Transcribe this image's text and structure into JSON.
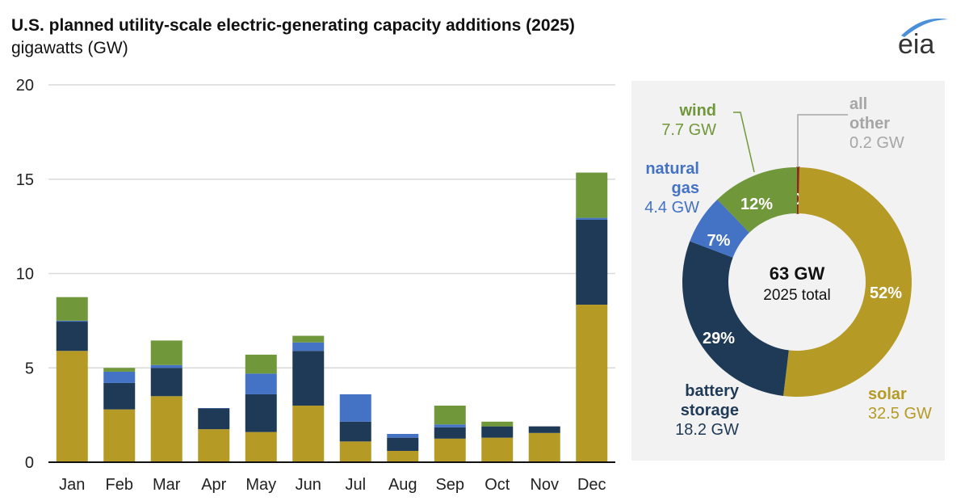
{
  "title": "U.S. planned utility-scale electric-generating capacity additions (2025)",
  "subtitle": "gigawatts (GW)",
  "logo_text": "eia",
  "colors": {
    "solar": "#b59a26",
    "battery storage": "#1f3a56",
    "natural gas": "#4472c4",
    "wind": "#70973a",
    "all other": "#8b2a1d",
    "panel": "#f2f2f2"
  },
  "chart_data": [
    {
      "type": "bar",
      "stacked": true,
      "categories": [
        "Jan",
        "Feb",
        "Mar",
        "Apr",
        "May",
        "Jun",
        "Jul",
        "Aug",
        "Sep",
        "Oct",
        "Nov",
        "Dec"
      ],
      "series": [
        {
          "key": "solar",
          "values": [
            5.9,
            2.8,
            3.5,
            1.75,
            1.6,
            3.0,
            1.1,
            0.6,
            1.25,
            1.3,
            1.55,
            8.35
          ]
        },
        {
          "key": "battery storage",
          "values": [
            1.55,
            1.4,
            1.5,
            1.1,
            2.0,
            2.9,
            1.05,
            0.7,
            0.6,
            0.6,
            0.35,
            4.5
          ]
        },
        {
          "key": "natural gas",
          "values": [
            0.05,
            0.6,
            0.15,
            0.02,
            1.1,
            0.45,
            1.45,
            0.2,
            0.15,
            0.0,
            0.0,
            0.1
          ]
        },
        {
          "key": "wind",
          "values": [
            1.25,
            0.2,
            1.3,
            0.0,
            1.0,
            0.35,
            0.0,
            0.0,
            1.0,
            0.25,
            0.0,
            2.4
          ]
        }
      ],
      "ylim": [
        0,
        20
      ],
      "yticks": [
        0,
        5,
        10,
        15,
        20
      ],
      "grid": true
    },
    {
      "type": "pie",
      "donut": true,
      "center_value": "63 GW",
      "center_label": "2025 total",
      "slices": [
        {
          "key": "all other",
          "label": "all other",
          "value": 0.2,
          "value_label": "0.2 GW",
          "pct": "0%"
        },
        {
          "key": "solar",
          "label": "solar",
          "value": 32.5,
          "value_label": "32.5 GW",
          "pct": "52%"
        },
        {
          "key": "battery storage",
          "label": "battery storage",
          "value": 18.2,
          "value_label": "18.2 GW",
          "pct": "29%"
        },
        {
          "key": "natural gas",
          "label": "natural gas",
          "value": 4.4,
          "value_label": "4.4 GW",
          "pct": "7%"
        },
        {
          "key": "wind",
          "label": "wind",
          "value": 7.7,
          "value_label": "7.7 GW",
          "pct": "12%"
        }
      ]
    }
  ]
}
